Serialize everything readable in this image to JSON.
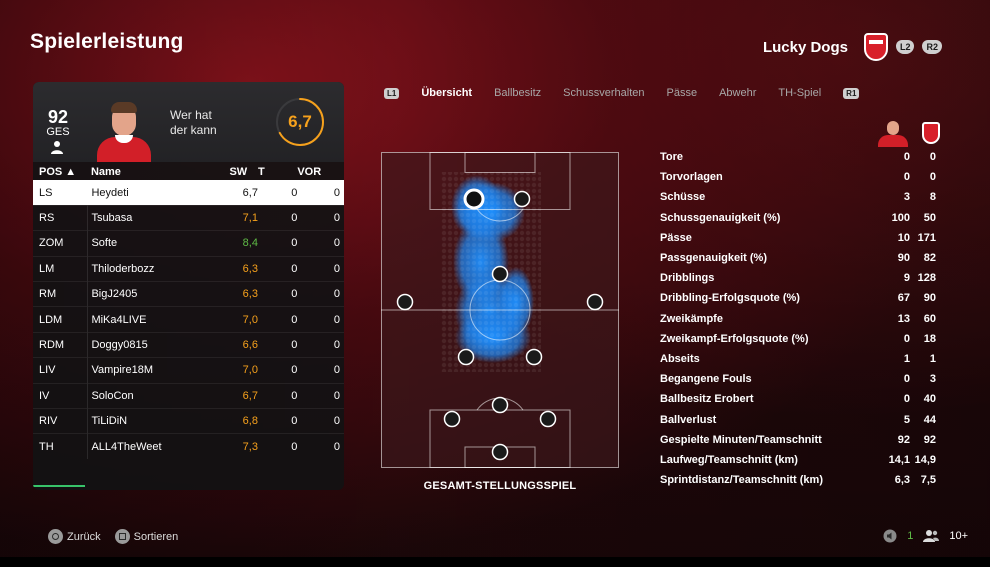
{
  "page_title": "Spielerleistung",
  "team": {
    "name": "Lucky Dogs",
    "left_bumper": "L2",
    "right_bumper": "R2"
  },
  "player_card": {
    "overall": "92",
    "overall_label": "GES",
    "name_line1": "Wer hat",
    "name_line2": "der kann",
    "match_rating": "6,7",
    "match_rating_fraction": 0.67
  },
  "table": {
    "headers": {
      "pos": "POS ▲",
      "name": "Name",
      "sw": "SW",
      "t": "T",
      "vor": "VOR"
    },
    "rows": [
      {
        "pos": "LS",
        "name": "Heydeti",
        "sw": "6,7",
        "t": "0",
        "vor": "0",
        "color": "dark"
      },
      {
        "pos": "RS",
        "name": "Tsubasa",
        "sw": "7,1",
        "t": "0",
        "vor": "0",
        "color": "orange"
      },
      {
        "pos": "ZOM",
        "name": "Softe",
        "sw": "8,4",
        "t": "0",
        "vor": "0",
        "color": "green"
      },
      {
        "pos": "LM",
        "name": "Thiloderbozz",
        "sw": "6,3",
        "t": "0",
        "vor": "0",
        "color": "orange"
      },
      {
        "pos": "RM",
        "name": "BigJ2405",
        "sw": "6,3",
        "t": "0",
        "vor": "0",
        "color": "orange"
      },
      {
        "pos": "LDM",
        "name": "MiKa4LIVE",
        "sw": "7,0",
        "t": "0",
        "vor": "0",
        "color": "orange"
      },
      {
        "pos": "RDM",
        "name": "Doggy0815",
        "sw": "6,6",
        "t": "0",
        "vor": "0",
        "color": "orange"
      },
      {
        "pos": "LIV",
        "name": "Vampire18M",
        "sw": "7,0",
        "t": "0",
        "vor": "0",
        "color": "orange"
      },
      {
        "pos": "IV",
        "name": "SoloCon",
        "sw": "6,7",
        "t": "0",
        "vor": "0",
        "color": "orange"
      },
      {
        "pos": "RIV",
        "name": "TiLiDiN",
        "sw": "6,8",
        "t": "0",
        "vor": "0",
        "color": "orange"
      },
      {
        "pos": "TH",
        "name": "ALL4TheWeet",
        "sw": "7,3",
        "t": "0",
        "vor": "0",
        "color": "orange"
      }
    ]
  },
  "tabs": {
    "left_bumper": "L1",
    "right_bumper": "R1",
    "items": [
      "Übersicht",
      "Ballbesitz",
      "Schussverhalten",
      "Pässe",
      "Abwehr",
      "TH-Spiel"
    ],
    "active_index": 0
  },
  "pitch": {
    "caption": "GESAMT-STELLUNGSSPIEL"
  },
  "stats": [
    {
      "label": "Tore",
      "player": "0",
      "team": "0"
    },
    {
      "label": "Torvorlagen",
      "player": "0",
      "team": "0"
    },
    {
      "label": "Schüsse",
      "player": "3",
      "team": "8"
    },
    {
      "label": "Schussgenauigkeit (%)",
      "player": "100",
      "team": "50"
    },
    {
      "label": "Pässe",
      "player": "10",
      "team": "171"
    },
    {
      "label": "Passgenauigkeit (%)",
      "player": "90",
      "team": "82"
    },
    {
      "label": "Dribblings",
      "player": "9",
      "team": "128"
    },
    {
      "label": "Dribbling-Erfolgsquote (%)",
      "player": "67",
      "team": "90"
    },
    {
      "label": "Zweikämpfe",
      "player": "13",
      "team": "60"
    },
    {
      "label": "Zweikampf-Erfolgsquote (%)",
      "player": "0",
      "team": "18"
    },
    {
      "label": "Abseits",
      "player": "1",
      "team": "1"
    },
    {
      "label": "Begangene Fouls",
      "player": "0",
      "team": "3"
    },
    {
      "label": "Ballbesitz Erobert",
      "player": "0",
      "team": "40"
    },
    {
      "label": "Ballverlust",
      "player": "5",
      "team": "44"
    },
    {
      "label": "Gespielte Minuten/Teamschnitt",
      "player": "92",
      "team": "92"
    },
    {
      "label": "Laufweg/Teamschnitt (km)",
      "player": "14,1",
      "team": "14,9"
    },
    {
      "label": "Sprintdistanz/Teamschnitt (km)",
      "player": "6,3",
      "team": "7,5"
    }
  ],
  "footer": {
    "back_label": "Zurück",
    "sort_label": "Sortieren",
    "online_count": "1",
    "players_count": "10+"
  },
  "colors": {
    "accent_orange": "#f6a11c",
    "accent_green": "#5fbb46",
    "heatmap_blue": "#1e90ff",
    "team_red": "#d8202a"
  }
}
